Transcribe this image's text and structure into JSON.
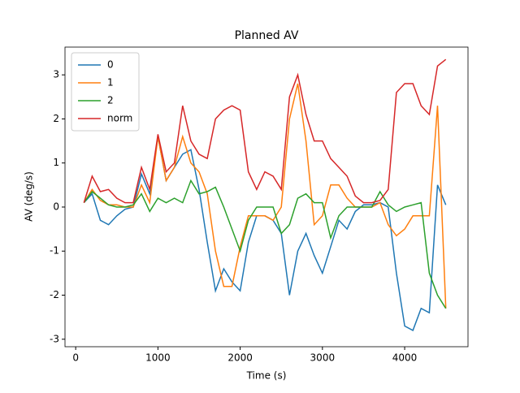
{
  "chart_data": {
    "type": "line",
    "title": "Planned AV",
    "x_label": "Time (s)",
    "y_label": "AV (deg/s)",
    "x": [
      100,
      200,
      300,
      400,
      500,
      600,
      700,
      800,
      900,
      1000,
      1100,
      1200,
      1300,
      1400,
      1500,
      1600,
      1700,
      1800,
      1900,
      2000,
      2100,
      2200,
      2300,
      2400,
      2500,
      2600,
      2700,
      2800,
      2900,
      3000,
      3100,
      3200,
      3300,
      3400,
      3500,
      3600,
      3700,
      3800,
      3900,
      4000,
      4100,
      4200,
      4300,
      4400,
      4500
    ],
    "series": [
      {
        "name": "0",
        "color": "#1f77b4",
        "values": [
          0.1,
          0.3,
          -0.3,
          -0.4,
          -0.2,
          -0.05,
          0,
          0.75,
          0.3,
          1.6,
          0.6,
          0.9,
          1.2,
          1.3,
          0.4,
          -0.8,
          -1.9,
          -1.4,
          -1.7,
          -1.9,
          -0.8,
          -0.2,
          -0.2,
          -0.3,
          -0.6,
          -2.0,
          -1.0,
          -0.6,
          -1.1,
          -1.5,
          -0.9,
          -0.3,
          -0.5,
          -0.1,
          0.05,
          0.05,
          0.1,
          0.0,
          -1.5,
          -2.7,
          -2.8,
          -2.3,
          -2.4,
          0.5,
          0.05
        ]
      },
      {
        "name": "1",
        "color": "#ff7f0e",
        "values": [
          0.1,
          0.4,
          0.15,
          0.05,
          0.05,
          0.0,
          0.0,
          0.5,
          0.1,
          1.6,
          0.6,
          0.9,
          1.6,
          1.0,
          0.8,
          0.3,
          -1.0,
          -1.8,
          -1.8,
          -0.9,
          -0.2,
          -0.2,
          -0.2,
          -0.3,
          0.0,
          2.0,
          2.8,
          1.5,
          -0.4,
          -0.2,
          0.5,
          0.5,
          0.2,
          0.0,
          0.0,
          0.0,
          0.1,
          -0.4,
          -0.65,
          -0.5,
          -0.2,
          -0.2,
          -0.2,
          2.3,
          -2.3
        ]
      },
      {
        "name": "2",
        "color": "#2ca02c",
        "values": [
          0.1,
          0.35,
          0.2,
          0.05,
          0.0,
          0.0,
          0.05,
          0.3,
          -0.1,
          0.2,
          0.1,
          0.2,
          0.1,
          0.6,
          0.3,
          0.35,
          0.45,
          0.0,
          -0.5,
          -1.0,
          -0.3,
          0.0,
          0.0,
          0.0,
          -0.6,
          -0.4,
          0.2,
          0.3,
          0.1,
          0.1,
          -0.7,
          -0.2,
          0.0,
          0.0,
          0.0,
          0.0,
          0.35,
          0.05,
          -0.1,
          0.0,
          0.05,
          0.1,
          -1.5,
          -2.0,
          -2.3
        ]
      },
      {
        "name": "norm",
        "color": "#d62728",
        "values": [
          0.1,
          0.7,
          0.35,
          0.4,
          0.2,
          0.1,
          0.1,
          0.9,
          0.4,
          1.65,
          0.8,
          1.0,
          2.3,
          1.5,
          1.2,
          1.1,
          2.0,
          2.2,
          2.3,
          2.2,
          0.8,
          0.4,
          0.8,
          0.7,
          0.4,
          2.5,
          3.0,
          2.1,
          1.5,
          1.5,
          1.1,
          0.9,
          0.7,
          0.25,
          0.1,
          0.1,
          0.15,
          0.4,
          2.6,
          2.8,
          2.8,
          2.3,
          2.1,
          3.2,
          3.35
        ]
      }
    ],
    "xlim": [
      -130,
      4770
    ],
    "xticks": [
      0,
      1000,
      2000,
      3000,
      4000
    ],
    "ylim": [
      -3.17,
      3.63
    ],
    "yticks": [
      -3,
      -2,
      -1,
      0,
      1,
      2,
      3
    ],
    "grid": false,
    "legend": "upper left"
  }
}
